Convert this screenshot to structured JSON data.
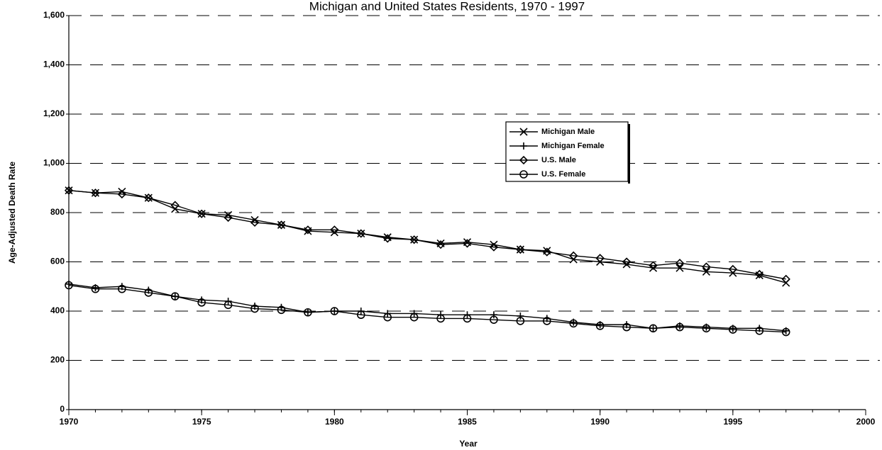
{
  "chart_data": {
    "type": "line",
    "title": "Michigan and United States Residents, 1970 - 1997",
    "x_label": "Year",
    "y_label": "Age-Adjusted Death Rate",
    "x": [
      1970,
      1971,
      1972,
      1973,
      1974,
      1975,
      1976,
      1977,
      1978,
      1979,
      1980,
      1981,
      1982,
      1983,
      1984,
      1985,
      1986,
      1987,
      1988,
      1989,
      1990,
      1991,
      1992,
      1993,
      1994,
      1995,
      1996,
      1997
    ],
    "series": [
      {
        "name": "Michigan Male",
        "color": "#000000",
        "marker": "x",
        "values": [
          890,
          880,
          885,
          860,
          815,
          795,
          790,
          770,
          750,
          725,
          720,
          715,
          700,
          690,
          675,
          680,
          670,
          650,
          645,
          610,
          600,
          590,
          575,
          575,
          560,
          555,
          545,
          515
        ]
      },
      {
        "name": "Michigan Female",
        "color": "#000000",
        "marker": "plus",
        "values": [
          510,
          495,
          500,
          485,
          460,
          445,
          440,
          420,
          415,
          395,
          400,
          400,
          390,
          390,
          385,
          385,
          385,
          380,
          370,
          355,
          345,
          345,
          330,
          340,
          335,
          330,
          330,
          320
        ]
      },
      {
        "name": "U.S. Male",
        "color": "#000000",
        "marker": "diamond",
        "values": [
          890,
          880,
          875,
          860,
          830,
          795,
          780,
          760,
          750,
          730,
          730,
          715,
          695,
          690,
          670,
          675,
          660,
          650,
          640,
          625,
          615,
          600,
          585,
          595,
          580,
          570,
          550,
          530
        ]
      },
      {
        "name": "U.S. Female",
        "color": "#000000",
        "marker": "circle",
        "values": [
          505,
          490,
          490,
          475,
          460,
          435,
          425,
          410,
          405,
          395,
          400,
          385,
          375,
          375,
          370,
          370,
          365,
          360,
          360,
          350,
          340,
          335,
          330,
          335,
          330,
          325,
          320,
          315
        ]
      }
    ],
    "xlim": [
      1970,
      2000
    ],
    "xticks": [
      1970,
      1975,
      1980,
      1985,
      1990,
      1995,
      2000
    ],
    "ylim": [
      0,
      1600
    ],
    "yticks": [
      0,
      200,
      400,
      600,
      800,
      {
        "value": 1000,
        "label": "1,000"
      },
      {
        "value": 1200,
        "label": "1,200"
      },
      {
        "value": 1400,
        "label": "1,400"
      },
      {
        "value": 1600,
        "label": "1,600"
      }
    ],
    "grid": true
  }
}
